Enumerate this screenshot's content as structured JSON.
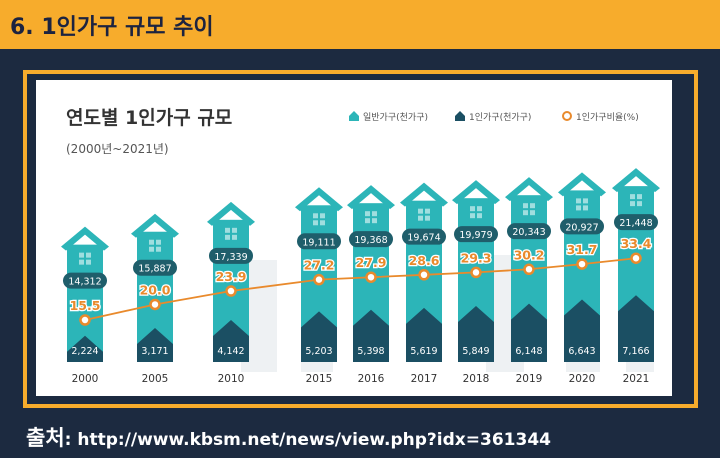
{
  "header": {
    "title": "6. 1인가구 규모 추이"
  },
  "source": {
    "label": "출처",
    "text": ": http://www.kbsm.net/news/view.php?idx=361344"
  },
  "colors": {
    "header_bg": "#f7ac2c",
    "frame": "#f7ac2c",
    "page_bg": "#1c2a40",
    "general_household": "#2cb5b8",
    "single_household": "#1b4f63",
    "ratio_line": "#e98a2c"
  },
  "chart_data": {
    "type": "bar",
    "title": "연도별 1인가구 규모",
    "subtitle": "(2000년~2021년)",
    "categories": [
      "2000",
      "2005",
      "2010",
      "2015",
      "2016",
      "2017",
      "2018",
      "2019",
      "2020",
      "2021"
    ],
    "series": [
      {
        "name": "일반가구(천가구)",
        "values": [
          14312,
          15887,
          17339,
          19111,
          19368,
          19674,
          19979,
          20343,
          20927,
          21448
        ],
        "labels": [
          "14,312",
          "15,887",
          "17,339",
          "19,111",
          "19,368",
          "19,674",
          "19,979",
          "20,343",
          "20,927",
          "21,448"
        ],
        "icon": "house-icon"
      },
      {
        "name": "1인가구(천가구)",
        "values": [
          2224,
          3171,
          4142,
          5203,
          5398,
          5619,
          5849,
          6148,
          6643,
          7166
        ],
        "labels": [
          "2,224",
          "3,171",
          "4,142",
          "5,203",
          "5,398",
          "5,619",
          "5,849",
          "6,148",
          "6,643",
          "7,166"
        ],
        "icon": "house-icon"
      },
      {
        "name": "1인가구비율(%)",
        "type": "line",
        "values": [
          15.5,
          20.0,
          23.9,
          27.2,
          27.9,
          28.6,
          29.3,
          30.2,
          31.7,
          33.4
        ],
        "labels": [
          "15.5",
          "20.0",
          "23.9",
          "27.2",
          "27.9",
          "28.6",
          "29.3",
          "30.2",
          "31.7",
          "33.4"
        ],
        "icon": "circle-marker-icon"
      }
    ],
    "legend_position": "top-right",
    "grid": false
  }
}
